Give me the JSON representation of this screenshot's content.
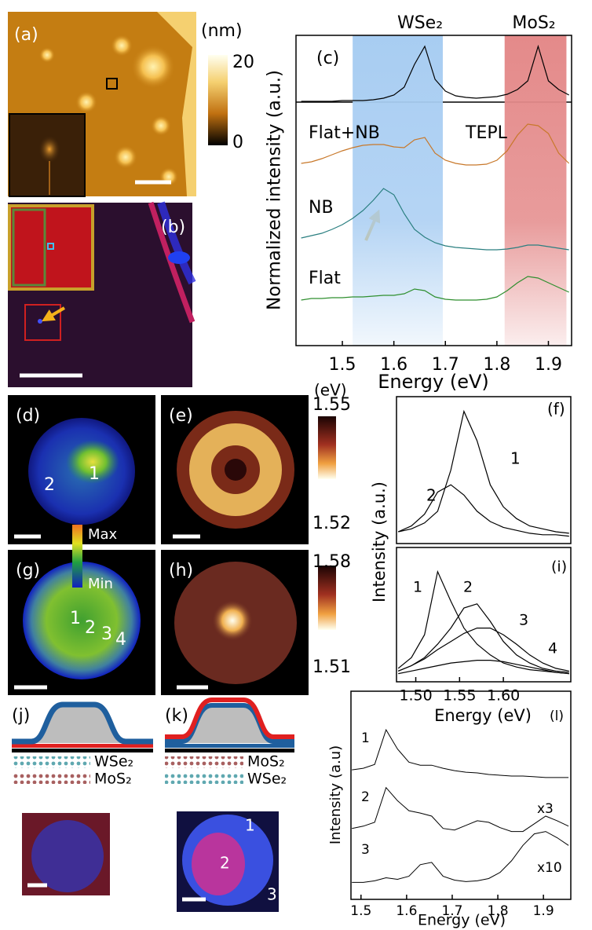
{
  "panels": {
    "a": {
      "label": "(a)",
      "colorbar_unit": "(nm)",
      "colorbar_max": 20,
      "colorbar_min": 0
    },
    "b": {
      "label": "(b)"
    },
    "d": {
      "label": "(d)",
      "points": [
        "2",
        "1"
      ]
    },
    "e": {
      "label": "(e)"
    },
    "g": {
      "label": "(g)",
      "points": [
        "1",
        "2",
        "3",
        "4"
      ]
    },
    "h": {
      "label": "(h)"
    },
    "colorbar_e": {
      "unit": "(eV)",
      "max": 1.55,
      "min": 1.52
    },
    "colorbar_h": {
      "max": 1.58,
      "min": 1.51
    },
    "intensity_scale": {
      "max": "Max",
      "min": "Min"
    },
    "j": {
      "label": "(j)",
      "layers": [
        "WSe₂",
        "MoS₂"
      ]
    },
    "k": {
      "label": "(k)",
      "layers": [
        "MoS₂",
        "WSe₂"
      ],
      "points": [
        "1",
        "2",
        "3"
      ]
    }
  },
  "chart_data": [
    {
      "type": "line",
      "panel_label": "(c)",
      "annotations": [
        "WSe₂",
        "MoS₂",
        "TEPL"
      ],
      "x_label": "Energy (eV)",
      "y_label": "Normalized intensity (a.u.)",
      "x": [
        1.42,
        1.44,
        1.46,
        1.48,
        1.5,
        1.52,
        1.54,
        1.56,
        1.58,
        1.6,
        1.62,
        1.64,
        1.66,
        1.68,
        1.7,
        1.72,
        1.74,
        1.76,
        1.78,
        1.8,
        1.82,
        1.84,
        1.86,
        1.88,
        1.9,
        1.92,
        1.94
      ],
      "xlim": [
        1.41,
        1.945
      ],
      "ylim": [
        0,
        395
      ],
      "xticks": [
        1.5,
        1.6,
        1.7,
        1.8,
        1.9
      ],
      "bands": [
        {
          "xlim": [
            1.52,
            1.695
          ],
          "color": "#a8cdf2"
        },
        {
          "xlim": [
            1.815,
            1.935
          ],
          "color": "#e48a8a"
        }
      ],
      "series": [
        {
          "color": "#000000",
          "values": [
            311,
            311,
            311,
            311,
            312,
            312,
            312,
            313,
            315,
            319,
            329,
            358,
            381,
            339,
            324,
            318,
            316,
            315,
            316,
            317,
            320,
            326,
            337,
            381,
            337,
            326,
            319
          ]
        },
        {
          "name": "Flat+NB",
          "color": "#c8782a",
          "values": [
            232,
            234,
            238,
            243,
            248,
            252,
            255,
            256,
            256,
            253,
            252,
            262,
            265,
            245,
            236,
            232,
            230,
            230,
            231,
            236,
            248,
            268,
            282,
            280,
            270,
            245,
            232
          ]
        },
        {
          "name": "NB",
          "color": "#2a7f80",
          "values": [
            137,
            140,
            143,
            148,
            154,
            162,
            172,
            185,
            200,
            192,
            168,
            148,
            138,
            131,
            127,
            125,
            124,
            123,
            122,
            122,
            123,
            125,
            128,
            128,
            126,
            124,
            122
          ]
        },
        {
          "name": "Flat",
          "color": "#2f8f2f",
          "values": [
            58,
            60,
            60,
            61,
            61,
            62,
            62,
            63,
            64,
            64,
            66,
            72,
            70,
            62,
            59,
            58,
            58,
            58,
            59,
            62,
            70,
            80,
            88,
            86,
            80,
            74,
            68
          ]
        }
      ]
    },
    {
      "type": "line",
      "panel_label": "(f)",
      "y_label": "Intensity (a.u.)",
      "x": [
        1.48,
        1.495,
        1.51,
        1.525,
        1.54,
        1.555,
        1.57,
        1.585,
        1.6,
        1.615,
        1.63,
        1.645,
        1.66,
        1.675
      ],
      "xlim": [
        1.478,
        1.677
      ],
      "ylim": [
        0,
        100
      ],
      "series": [
        {
          "name": "1",
          "color": "#000000",
          "values": [
            8,
            10,
            14,
            22,
            50,
            90,
            70,
            40,
            25,
            17,
            12,
            10,
            8,
            7
          ]
        },
        {
          "name": "2",
          "color": "#000000",
          "values": [
            8,
            12,
            20,
            35,
            40,
            33,
            22,
            15,
            11,
            9,
            7,
            6,
            6,
            5
          ]
        }
      ]
    },
    {
      "type": "line",
      "panel_label": "(i)",
      "x_label": "Energy (eV)",
      "x": [
        1.48,
        1.495,
        1.51,
        1.525,
        1.54,
        1.555,
        1.57,
        1.585,
        1.6,
        1.615,
        1.63,
        1.645,
        1.66,
        1.675
      ],
      "xlim": [
        1.478,
        1.677
      ],
      "ylim": [
        0,
        100
      ],
      "xticks": [
        {
          "value": 1.5,
          "label": "1.50"
        },
        1.55,
        {
          "value": 1.6,
          "label": "1.60"
        }
      ],
      "series": [
        {
          "name": "1",
          "color": "#000000",
          "values": [
            10,
            18,
            35,
            82,
            60,
            40,
            28,
            20,
            14,
            11,
            9,
            8,
            7,
            6
          ]
        },
        {
          "name": "2",
          "color": "#000000",
          "values": [
            8,
            12,
            18,
            28,
            40,
            55,
            58,
            45,
            30,
            20,
            14,
            10,
            8,
            7
          ]
        },
        {
          "name": "3",
          "color": "#000000",
          "values": [
            8,
            12,
            17,
            24,
            30,
            36,
            40,
            40,
            35,
            28,
            20,
            14,
            10,
            8
          ]
        },
        {
          "name": "4",
          "color": "#000000",
          "values": [
            6,
            8,
            10,
            12,
            14,
            15,
            16,
            16,
            15,
            13,
            11,
            9,
            7,
            6
          ]
        }
      ]
    },
    {
      "type": "line",
      "panel_label": "(l)",
      "x_label": "Energy (eV)",
      "y_label": "Intensity (a.u)",
      "x": [
        1.48,
        1.505,
        1.53,
        1.555,
        1.58,
        1.605,
        1.63,
        1.655,
        1.68,
        1.705,
        1.73,
        1.755,
        1.78,
        1.805,
        1.83,
        1.855,
        1.88,
        1.905,
        1.93,
        1.955
      ],
      "xlim": [
        1.478,
        1.96
      ],
      "ylim": [
        0,
        270
      ],
      "xticks": [
        1.5,
        1.6,
        1.7,
        1.8,
        1.9
      ],
      "series": [
        {
          "name": "1",
          "color": "#000000",
          "values": [
            168,
            170,
            175,
            220,
            195,
            178,
            174,
            174,
            170,
            167,
            165,
            164,
            162,
            161,
            160,
            160,
            159,
            158,
            158,
            158
          ]
        },
        {
          "name": "2",
          "scale": "x3",
          "color": "#000000",
          "values": [
            92,
            95,
            100,
            145,
            128,
            115,
            112,
            108,
            92,
            90,
            96,
            102,
            100,
            93,
            88,
            88,
            98,
            108,
            102,
            95
          ]
        },
        {
          "name": "3",
          "scale": "x10",
          "color": "#000000",
          "values": [
            22,
            22,
            24,
            28,
            26,
            30,
            45,
            48,
            30,
            25,
            23,
            24,
            27,
            35,
            50,
            70,
            85,
            88,
            80,
            70
          ]
        }
      ]
    }
  ]
}
